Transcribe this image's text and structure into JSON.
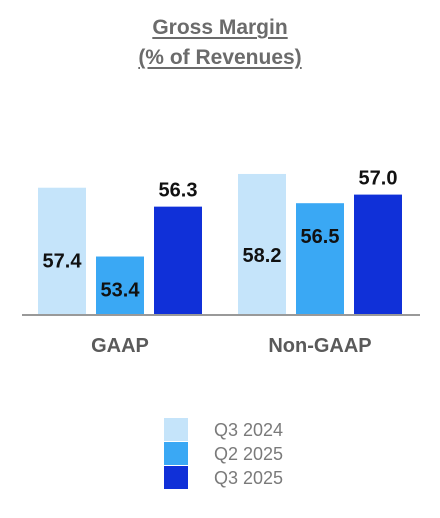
{
  "chart_data": {
    "type": "bar",
    "title": "Gross Margin",
    "subtitle": "(% of Revenues)",
    "categories": [
      "GAAP",
      "Non-GAAP"
    ],
    "series": [
      {
        "name": "Q3 2024",
        "color": "#c5e4fa",
        "values": [
          57.4,
          58.2
        ]
      },
      {
        "name": "Q2 2025",
        "color": "#3aa8f4",
        "values": [
          53.4,
          56.5
        ]
      },
      {
        "name": "Q3 2025",
        "color": "#1030d8",
        "values": [
          56.3,
          57.0
        ]
      }
    ],
    "data_labels": [
      "57.4",
      "58.2",
      "53.4",
      "56.5",
      "56.3",
      "57.0"
    ],
    "ylim": [
      50,
      59
    ],
    "xlabel": "",
    "ylabel": "",
    "grid": false,
    "legend_position": "bottom",
    "colors": {
      "title": "#6b6b6b",
      "axis_label": "#5a5a5a",
      "baseline": "#999999",
      "value_label": "#111111",
      "legend_text": "#7a7a7a"
    }
  }
}
